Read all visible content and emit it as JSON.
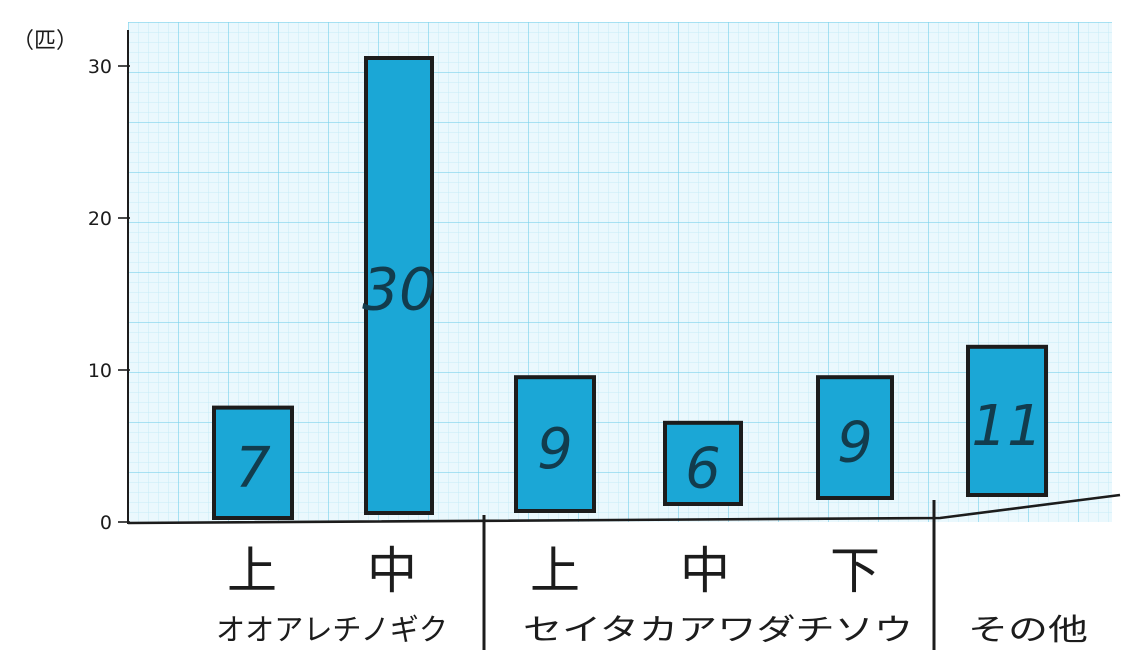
{
  "chart_data": {
    "type": "bar",
    "unit_label": "（匹）",
    "ylim": [
      0,
      30
    ],
    "yticks": [
      0,
      10,
      20,
      30
    ],
    "grid": true,
    "categories": [
      "上",
      "中",
      "上",
      "中",
      "下",
      "その他"
    ],
    "values": [
      7,
      30,
      9,
      6,
      9,
      11
    ],
    "groups": [
      {
        "label": "オオアレチノギク",
        "subs": [
          "上",
          "中"
        ]
      },
      {
        "label": "セイタカアワダチソウ",
        "subs": [
          "上",
          "中",
          "下"
        ]
      },
      {
        "label": "その他",
        "subs": []
      }
    ],
    "colors": {
      "bar": "#1ba7d6",
      "grid_major": "#7fd3ec",
      "grid_minor": "#c6ebf6",
      "paper": "#eaf8fd",
      "ink": "#1c1c1c"
    }
  }
}
